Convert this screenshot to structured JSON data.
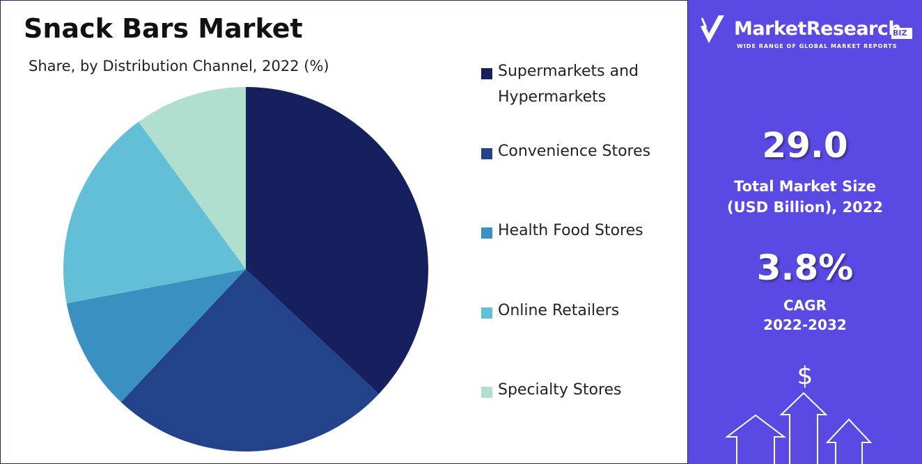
{
  "chart_data": {
    "type": "pie",
    "title": "Snack Bars Market",
    "subtitle": "Share, by Distribution Channel, 2022 (%)",
    "categories": [
      "Supermarkets and Hypermarkets",
      "Convenience Stores",
      "Health Food Stores",
      "Online Retailers",
      "Specialty Stores"
    ],
    "values": [
      37,
      25,
      10,
      18,
      10
    ],
    "colors": [
      "#16205e",
      "#22438a",
      "#3a90c0",
      "#62bfd5",
      "#b1dfcf"
    ],
    "legend": "right"
  },
  "panel": {
    "brand": "MarketResearch",
    "badge": "BIZ",
    "tagline": "WIDE RANGE OF GLOBAL MARKET REPORTS",
    "market_size": "29.0",
    "market_size_label_1": "Total Market Size",
    "market_size_label_2": "(USD Billion), 2022",
    "cagr": "3.8%",
    "cagr_label_1": "CAGR",
    "cagr_label_2": "2022-2032",
    "icon": "$"
  }
}
